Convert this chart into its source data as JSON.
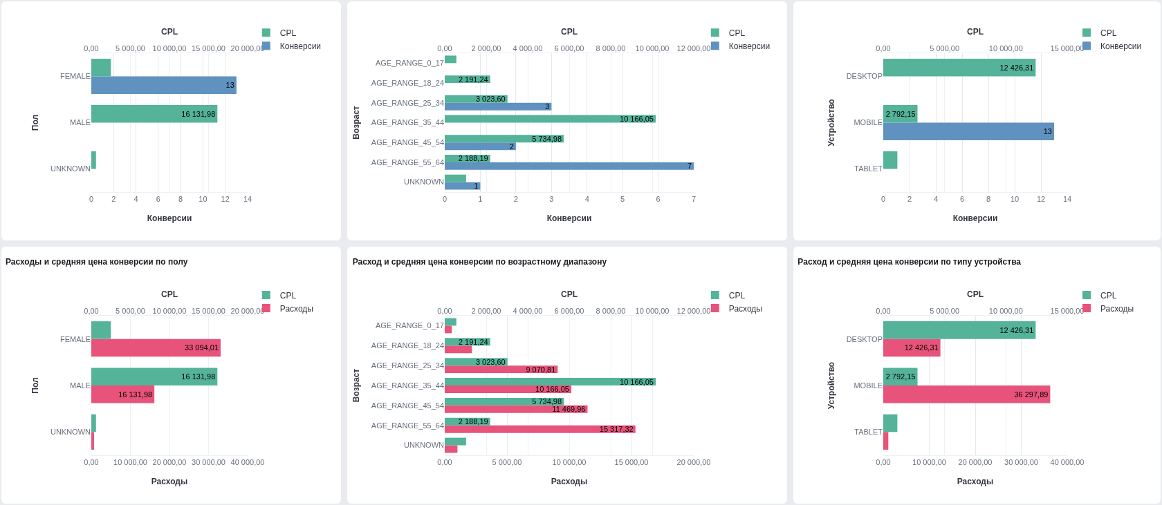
{
  "chart_data": [
    {
      "type": "bar",
      "orientation": "horizontal",
      "x2label": "CPL",
      "xlabel": "Конверсии",
      "ylabel": "Пол",
      "categories": [
        "FEMALE",
        "MALE",
        "UNKNOWN"
      ],
      "series": [
        {
          "name": "CPL",
          "color": "#54b399",
          "axis": "x2",
          "values": [
            2500,
            16131.98,
            600
          ],
          "value_labels": [
            null,
            "16 131,98",
            null
          ]
        },
        {
          "name": "Конверсии",
          "color": "#6092c0",
          "values": [
            13,
            null,
            null
          ],
          "value_labels": [
            "13",
            null,
            null
          ]
        }
      ],
      "xlim": [
        0,
        14
      ],
      "xticks": [
        0,
        2,
        4,
        6,
        8,
        10,
        12,
        14
      ],
      "x2lim": [
        0,
        20000
      ],
      "x2ticks": [
        {
          "value": 0,
          "label": "0,00"
        },
        {
          "value": 5000,
          "label": "5 000,00"
        },
        {
          "value": 10000,
          "label": "10 000,00"
        },
        {
          "value": 15000,
          "label": "15 000,00"
        },
        {
          "value": 20000,
          "label": "20 000,00"
        }
      ],
      "grid": "x",
      "legend": "top right"
    },
    {
      "type": "bar",
      "orientation": "horizontal",
      "x2label": "CPL",
      "xlabel": "Конверсии",
      "ylabel": "Возраст",
      "categories": [
        "AGE_RANGE_0_17",
        "AGE_RANGE_18_24",
        "AGE_RANGE_25_34",
        "AGE_RANGE_35_44",
        "AGE_RANGE_45_54",
        "AGE_RANGE_55_64",
        "UNKNOWN"
      ],
      "series": [
        {
          "name": "CPL",
          "color": "#54b399",
          "axis": "x2",
          "values": [
            560,
            2191.24,
            3023.6,
            10166.05,
            5734.98,
            2188.19,
            1030
          ],
          "value_labels": [
            null,
            "2 191,24",
            "3 023,60",
            "10 166,05",
            "5 734,98",
            "2 188,19",
            null
          ]
        },
        {
          "name": "Конверсии",
          "color": "#6092c0",
          "values": [
            null,
            null,
            3,
            null,
            2,
            7,
            1
          ],
          "value_labels": [
            null,
            null,
            "3",
            null,
            "2",
            "7",
            "1"
          ]
        }
      ],
      "xlim": [
        0,
        7
      ],
      "xticks": [
        0,
        1,
        2,
        3,
        4,
        5,
        6,
        7
      ],
      "x2lim": [
        0,
        12000
      ],
      "x2ticks": [
        {
          "value": 0,
          "label": "0,00"
        },
        {
          "value": 2000,
          "label": "2 000,00"
        },
        {
          "value": 4000,
          "label": "4 000,00"
        },
        {
          "value": 6000,
          "label": "6 000,00"
        },
        {
          "value": 8000,
          "label": "8 000,00"
        },
        {
          "value": 10000,
          "label": "10 000,00"
        },
        {
          "value": 12000,
          "label": "12 000,00"
        }
      ],
      "grid": "x",
      "legend": "top right"
    },
    {
      "type": "bar",
      "orientation": "horizontal",
      "x2label": "CPL",
      "xlabel": "Конверсии",
      "ylabel": "Устройство",
      "categories": [
        "DESKTOP",
        "MOBILE",
        "TABLET"
      ],
      "series": [
        {
          "name": "CPL",
          "color": "#54b399",
          "axis": "x2",
          "values": [
            12426.31,
            2792.15,
            1150
          ],
          "value_labels": [
            "12 426,31",
            "2 792,15",
            null
          ]
        },
        {
          "name": "Конверсии",
          "color": "#6092c0",
          "values": [
            null,
            13,
            null
          ],
          "value_labels": [
            null,
            "13",
            null
          ]
        }
      ],
      "xlim": [
        0,
        14
      ],
      "xticks": [
        0,
        2,
        4,
        6,
        8,
        10,
        12,
        14
      ],
      "x2lim": [
        0,
        15000
      ],
      "x2ticks": [
        {
          "value": 0,
          "label": "0,00"
        },
        {
          "value": 5000,
          "label": "5 000,00"
        },
        {
          "value": 10000,
          "label": "10 000,00"
        },
        {
          "value": 15000,
          "label": "15 000,00"
        }
      ],
      "grid": "x",
      "legend": "top right"
    },
    {
      "type": "bar",
      "orientation": "horizontal",
      "title": "Расходы и средняя цена конверсии по полу",
      "x2label": "CPL",
      "xlabel": "Расходы",
      "ylabel": "Пол",
      "categories": [
        "FEMALE",
        "MALE",
        "UNKNOWN"
      ],
      "series": [
        {
          "name": "CPL",
          "color": "#54b399",
          "axis": "x2",
          "values": [
            2500,
            16131.98,
            600
          ],
          "value_labels": [
            null,
            "16 131,98",
            null
          ]
        },
        {
          "name": "Расходы",
          "color": "#e7537a",
          "values": [
            33094.01,
            16131.98,
            700
          ],
          "value_labels": [
            "33 094,01",
            "16 131,98",
            null
          ]
        }
      ],
      "xlim": [
        0,
        40000
      ],
      "xticks": [
        {
          "value": 0,
          "label": "0,00"
        },
        {
          "value": 10000,
          "label": "10 000,00"
        },
        {
          "value": 20000,
          "label": "20 000,00"
        },
        {
          "value": 30000,
          "label": "30 000,00"
        },
        {
          "value": 40000,
          "label": "40 000,00"
        }
      ],
      "x2lim": [
        0,
        20000
      ],
      "x2ticks": [
        {
          "value": 0,
          "label": "0,00"
        },
        {
          "value": 5000,
          "label": "5 000,00"
        },
        {
          "value": 10000,
          "label": "10 000,00"
        },
        {
          "value": 15000,
          "label": "15 000,00"
        },
        {
          "value": 20000,
          "label": "20 000,00"
        }
      ],
      "grid": "x",
      "legend": "top right"
    },
    {
      "type": "bar",
      "orientation": "horizontal",
      "title": "Расход и средняя цена конверсии по возрастному диапазону",
      "x2label": "CPL",
      "xlabel": "Расходы",
      "ylabel": "Возраст",
      "categories": [
        "AGE_RANGE_0_17",
        "AGE_RANGE_18_24",
        "AGE_RANGE_25_34",
        "AGE_RANGE_35_44",
        "AGE_RANGE_45_54",
        "AGE_RANGE_55_64",
        "UNKNOWN"
      ],
      "series": [
        {
          "name": "CPL",
          "color": "#54b399",
          "axis": "x2",
          "values": [
            560,
            2191.24,
            3023.6,
            10166.05,
            5734.98,
            2188.19,
            1030
          ],
          "value_labels": [
            null,
            "2 191,24",
            "3 023,60",
            "10 166,05",
            "5 734,98",
            "2 188,19",
            null
          ]
        },
        {
          "name": "Расходы",
          "color": "#e7537a",
          "values": [
            560,
            2180,
            9070.81,
            10166.05,
            11469.96,
            15317.32,
            1020
          ],
          "value_labels": [
            null,
            null,
            "9 070,81",
            "10 166,05",
            "11 469,96",
            "15 317,32",
            null
          ]
        }
      ],
      "xlim": [
        0,
        20000
      ],
      "xticks": [
        {
          "value": 0,
          "label": "0,00"
        },
        {
          "value": 5000,
          "label": "5 000,00"
        },
        {
          "value": 10000,
          "label": "10 000,00"
        },
        {
          "value": 15000,
          "label": "15 000,00"
        },
        {
          "value": 20000,
          "label": "20 000,00"
        }
      ],
      "x2lim": [
        0,
        12000
      ],
      "x2ticks": [
        {
          "value": 0,
          "label": "0,00"
        },
        {
          "value": 2000,
          "label": "2 000,00"
        },
        {
          "value": 4000,
          "label": "4 000,00"
        },
        {
          "value": 6000,
          "label": "6 000,00"
        },
        {
          "value": 8000,
          "label": "8 000,00"
        },
        {
          "value": 10000,
          "label": "10 000,00"
        },
        {
          "value": 12000,
          "label": "12 000,00"
        }
      ],
      "grid": "x",
      "legend": "top right"
    },
    {
      "type": "bar",
      "orientation": "horizontal",
      "title": "Расход и средняя цена конверсии по типу устройства",
      "x2label": "CPL",
      "xlabel": "Расходы",
      "ylabel": "Устройство",
      "categories": [
        "DESKTOP",
        "MOBILE",
        "TABLET"
      ],
      "series": [
        {
          "name": "CPL",
          "color": "#54b399",
          "axis": "x2",
          "values": [
            12426.31,
            2792.15,
            1150
          ],
          "value_labels": [
            "12 426,31",
            "2 792,15",
            null
          ]
        },
        {
          "name": "Расходы",
          "color": "#e7537a",
          "values": [
            12426.31,
            36297.89,
            1100
          ],
          "value_labels": [
            "12 426,31",
            "36 297,89",
            null
          ]
        }
      ],
      "xlim": [
        0,
        40000
      ],
      "xticks": [
        {
          "value": 0,
          "label": "0,00"
        },
        {
          "value": 10000,
          "label": "10 000,00"
        },
        {
          "value": 20000,
          "label": "20 000,00"
        },
        {
          "value": 30000,
          "label": "30 000,00"
        },
        {
          "value": 40000,
          "label": "40 000,00"
        }
      ],
      "x2lim": [
        0,
        15000
      ],
      "x2ticks": [
        {
          "value": 0,
          "label": "0,00"
        },
        {
          "value": 5000,
          "label": "5 000,00"
        },
        {
          "value": 10000,
          "label": "10 000,00"
        },
        {
          "value": 15000,
          "label": "15 000,00"
        }
      ],
      "grid": "x",
      "legend": "top right"
    }
  ]
}
